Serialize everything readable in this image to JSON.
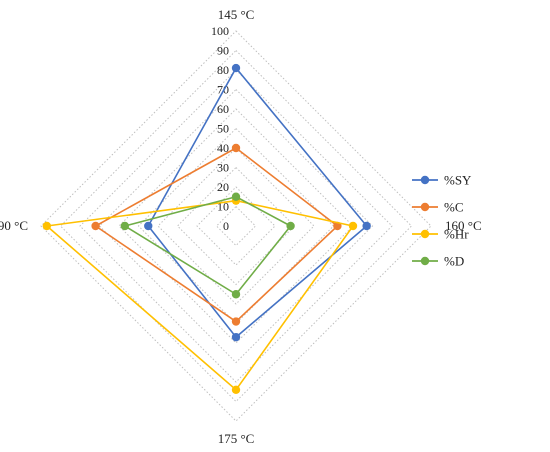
{
  "chart_data": {
    "type": "radar",
    "categories": [
      "145 °C",
      "160 °C",
      "175 °C",
      "190 °C"
    ],
    "r_range": [
      0,
      100
    ],
    "r_ticks": [
      0,
      10,
      20,
      30,
      40,
      50,
      60,
      70,
      80,
      90,
      100
    ],
    "grid": "dotted",
    "legend_position": "right",
    "series": [
      {
        "name": "%SY",
        "color": "#4472C4",
        "values": [
          81,
          67,
          57,
          45
        ]
      },
      {
        "name": "%C",
        "color": "#ED7D31",
        "values": [
          40,
          52,
          49,
          72
        ]
      },
      {
        "name": "%Hr",
        "color": "#FFC000",
        "values": [
          13,
          60,
          84,
          97
        ]
      },
      {
        "name": "%D",
        "color": "#70AD47",
        "values": [
          15,
          28,
          35,
          57
        ]
      }
    ]
  },
  "colors": {
    "grid": "#bfbfbf",
    "text": "#222222"
  }
}
